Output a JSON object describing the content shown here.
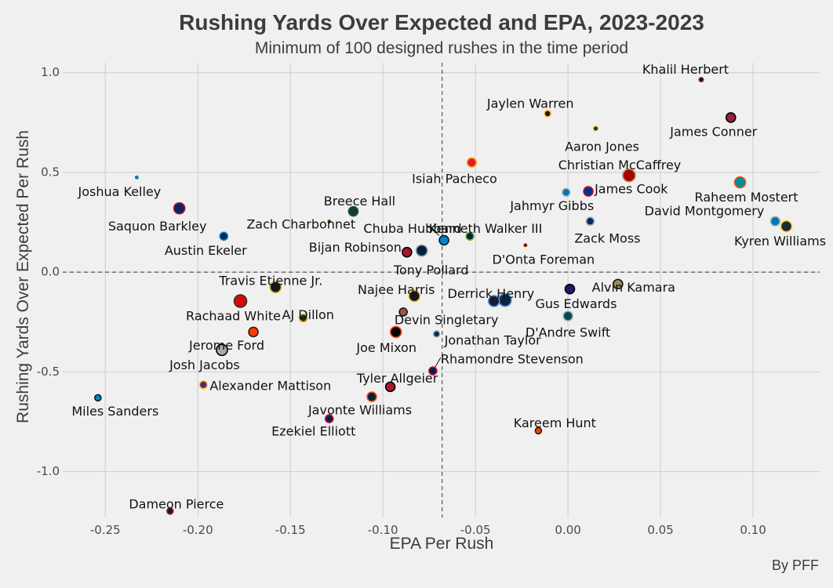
{
  "chart_data": {
    "type": "scatter",
    "title": "Rushing Yards Over Expected and EPA, 2023-2023",
    "subtitle": "Minimum of 100 designed rushes in the time period",
    "xlabel": "EPA Per Rush",
    "ylabel": "Rushing Yards Over Expected Per Rush",
    "caption": "By PFF",
    "xlim": [
      -0.273,
      0.136
    ],
    "ylim": [
      -1.23,
      1.05
    ],
    "xticks": [
      -0.25,
      -0.2,
      -0.15,
      -0.1,
      -0.05,
      0.0,
      0.05,
      0.1
    ],
    "xtick_labels": [
      "-0.25",
      "-0.20",
      "-0.15",
      "-0.10",
      "-0.05",
      "0.00",
      "0.05",
      "0.10"
    ],
    "yticks": [
      -1.0,
      -0.5,
      0.0,
      0.5,
      1.0
    ],
    "ytick_labels": [
      "-1.0",
      "-0.5",
      "0.0",
      "0.5",
      "1.0"
    ],
    "grid": true,
    "reference_lines": {
      "x": -0.068,
      "y": 0.0
    },
    "points": [
      {
        "label": "Khalil Herbert",
        "x": 0.072,
        "y": 0.965,
        "size": 3,
        "fill": "#0b162a",
        "edge": "#c83803"
      },
      {
        "label": "James Conner",
        "x": 0.088,
        "y": 0.775,
        "size": 6,
        "fill": "#97233f",
        "edge": "#000000"
      },
      {
        "label": "Jaylen Warren",
        "x": -0.011,
        "y": 0.795,
        "size": 4,
        "fill": "#101820",
        "edge": "#ffb612"
      },
      {
        "label": "Aaron Jones",
        "x": 0.015,
        "y": 0.72,
        "size": 3,
        "fill": "#203731",
        "edge": "#ffb612"
      },
      {
        "label": "Isiah Pacheco",
        "x": -0.052,
        "y": 0.55,
        "size": 6,
        "fill": "#e31837",
        "edge": "#ffb81c"
      },
      {
        "label": "Christian McCaffrey",
        "x": 0.033,
        "y": 0.485,
        "size": 8,
        "fill": "#aa0000",
        "edge": "#b3995d"
      },
      {
        "label": "Raheem Mostert",
        "x": 0.093,
        "y": 0.45,
        "size": 7,
        "fill": "#008e97",
        "edge": "#fc4c02"
      },
      {
        "label": "Joshua Kelley",
        "x": -0.233,
        "y": 0.475,
        "size": 2,
        "fill": "#0080c6",
        "edge": "#0080c6"
      },
      {
        "label": "Jahmyr Gibbs",
        "x": -0.001,
        "y": 0.4,
        "size": 5,
        "fill": "#0076b6",
        "edge": "#b0b7bc"
      },
      {
        "label": "James Cook",
        "x": 0.011,
        "y": 0.405,
        "size": 6,
        "fill": "#00338d",
        "edge": "#c60c30"
      },
      {
        "label": "Saquon Barkley",
        "x": -0.21,
        "y": 0.32,
        "size": 7,
        "fill": "#0b2265",
        "edge": "#a71930"
      },
      {
        "label": "Breece Hall",
        "x": -0.116,
        "y": 0.305,
        "size": 6,
        "fill": "#203731",
        "edge": "#125740"
      },
      {
        "label": "Zach Charbonnet",
        "x": -0.129,
        "y": 0.255,
        "size": 2,
        "fill": "#002244",
        "edge": "#69be28"
      },
      {
        "label": "David Montgomery",
        "x": 0.112,
        "y": 0.255,
        "size": 6,
        "fill": "#0076b6",
        "edge": "#b0b7bc"
      },
      {
        "label": "Zack Moss",
        "x": 0.012,
        "y": 0.255,
        "size": 5,
        "fill": "#002c5f",
        "edge": "#a2aaad"
      },
      {
        "label": "Kyren Williams",
        "x": 0.118,
        "y": 0.23,
        "size": 7,
        "fill": "#1a2a3a",
        "edge": "#ffd100"
      },
      {
        "label": "Austin Ekeler",
        "x": -0.186,
        "y": 0.18,
        "size": 5,
        "fill": "#002a5e",
        "edge": "#0080c6"
      },
      {
        "label": "Kenneth Walker III",
        "x": -0.053,
        "y": 0.18,
        "size": 5,
        "fill": "#002244",
        "edge": "#69be28"
      },
      {
        "label": "Chuba Hubbard",
        "x": -0.067,
        "y": 0.16,
        "size": 6,
        "fill": "#0085ca",
        "edge": "#101820"
      },
      {
        "label": "D'Onta Foreman",
        "x": -0.023,
        "y": 0.135,
        "size": 2,
        "fill": "#0b162a",
        "edge": "#c83803"
      },
      {
        "label": "Tony Pollard",
        "x": -0.079,
        "y": 0.108,
        "size": 7,
        "fill": "#041e42",
        "edge": "#869397"
      },
      {
        "label": "Bijan Robinson",
        "x": -0.087,
        "y": 0.1,
        "size": 6,
        "fill": "#a71930",
        "edge": "#000000"
      },
      {
        "label": "Travis Etienne Jr.",
        "x": -0.158,
        "y": -0.075,
        "size": 7,
        "fill": "#101820",
        "edge": "#d7a22a"
      },
      {
        "label": "Alvin Kamara",
        "x": 0.027,
        "y": -0.06,
        "size": 6,
        "fill": "#a08a58",
        "edge": "#101820"
      },
      {
        "label": "Gus Edwards",
        "x": 0.001,
        "y": -0.085,
        "size": 6,
        "fill": "#241773",
        "edge": "#000000"
      },
      {
        "label": "Najee Harris",
        "x": -0.083,
        "y": -0.12,
        "size": 7,
        "fill": "#101820",
        "edge": "#ffb612"
      },
      {
        "label": "Derrick Henry",
        "x": -0.034,
        "y": -0.14,
        "size": 8,
        "fill": "#0c2340",
        "edge": "#4b92db"
      },
      {
        "label": "Derrick Henry 2",
        "x": -0.04,
        "y": -0.145,
        "size": 7,
        "fill": "#1a1a2e",
        "edge": "#4b92db"
      },
      {
        "label": "Rachaad White",
        "x": -0.177,
        "y": -0.145,
        "size": 8,
        "fill": "#d50a0a",
        "edge": "#34302b"
      },
      {
        "label": "Devin Singletary",
        "x": -0.089,
        "y": -0.2,
        "size": 5,
        "fill": "#a5562c",
        "edge": "#03202f"
      },
      {
        "label": "AJ Dillon",
        "x": -0.143,
        "y": -0.23,
        "size": 5,
        "fill": "#203731",
        "edge": "#ffb612"
      },
      {
        "label": "D'Andre Swift",
        "x": 0.0,
        "y": -0.22,
        "size": 6,
        "fill": "#004c54",
        "edge": "#a5acaf"
      },
      {
        "label": "Jerome Ford",
        "x": -0.17,
        "y": -0.3,
        "size": 6,
        "fill": "#ff3c00",
        "edge": "#311d00"
      },
      {
        "label": "Joe Mixon",
        "x": -0.093,
        "y": -0.3,
        "size": 7,
        "fill": "#000000",
        "edge": "#fb4f14"
      },
      {
        "label": "Jonathan Taylor",
        "x": -0.071,
        "y": -0.31,
        "size": 4,
        "fill": "#002c5f",
        "edge": "#a2aaad"
      },
      {
        "label": "Josh Jacobs",
        "x": -0.187,
        "y": -0.39,
        "size": 7,
        "fill": "#a5acaf",
        "edge": "#000000"
      },
      {
        "label": "Rhamondre Stevenson",
        "x": -0.073,
        "y": -0.495,
        "size": 5,
        "fill": "#002244",
        "edge": "#c60c30"
      },
      {
        "label": "Alexander Mattison",
        "x": -0.197,
        "y": -0.565,
        "size": 5,
        "fill": "#4f2683",
        "edge": "#ffc62f"
      },
      {
        "label": "Tyler Allgeier",
        "x": -0.096,
        "y": -0.575,
        "size": 6,
        "fill": "#a71930",
        "edge": "#000000"
      },
      {
        "label": "Miles Sanders",
        "x": -0.254,
        "y": -0.63,
        "size": 4,
        "fill": "#0085ca",
        "edge": "#101820"
      },
      {
        "label": "Javonte Williams",
        "x": -0.106,
        "y": -0.625,
        "size": 6,
        "fill": "#002244",
        "edge": "#fb4f14"
      },
      {
        "label": "Ezekiel Elliott",
        "x": -0.129,
        "y": -0.735,
        "size": 5,
        "fill": "#002244",
        "edge": "#c60c30"
      },
      {
        "label": "Kareem Hunt",
        "x": -0.016,
        "y": -0.795,
        "size": 4,
        "fill": "#ff3c00",
        "edge": "#311d00"
      },
      {
        "label": "Dameon Pierce",
        "x": -0.215,
        "y": -1.198,
        "size": 4,
        "fill": "#03202f",
        "edge": "#a71930"
      }
    ]
  }
}
